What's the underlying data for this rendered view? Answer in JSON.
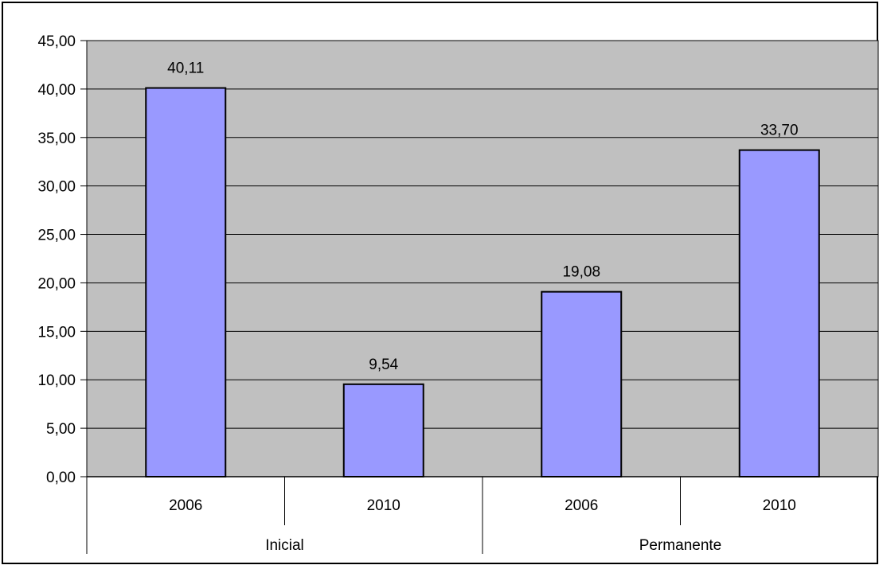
{
  "chart_data": {
    "type": "bar",
    "title": "",
    "xlabel": "",
    "ylabel": "",
    "ylim": [
      0,
      45
    ],
    "yticks": [
      "0,00",
      "5,00",
      "10,00",
      "15,00",
      "20,00",
      "25,00",
      "30,00",
      "35,00",
      "40,00",
      "45,00"
    ],
    "groups": [
      {
        "label": "Inicial",
        "categories": [
          "2006",
          "2010"
        ]
      },
      {
        "label": "Permanente",
        "categories": [
          "2006",
          "2010"
        ]
      }
    ],
    "categories": [
      "2006",
      "2010",
      "2006",
      "2010"
    ],
    "values": [
      40.11,
      9.54,
      19.08,
      33.7
    ],
    "value_labels": [
      "40,11",
      "9,54",
      "19,08",
      "33,70"
    ],
    "grid": true,
    "legend": "none",
    "colors": {
      "bar": "#9999ff",
      "plot_background": "#c0c0c0",
      "gridline": "#000000",
      "border": "#000000"
    }
  }
}
